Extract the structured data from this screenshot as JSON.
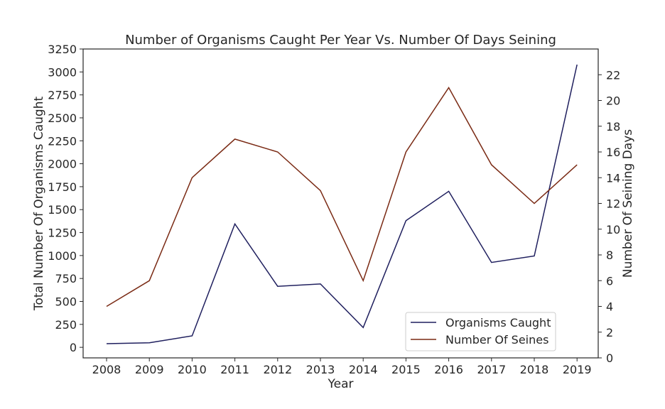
{
  "chart_data": {
    "type": "line",
    "title": "Number of Organisms Caught Per Year Vs. Number Of Days Seining",
    "xlabel": "Year",
    "ylabel_left": "Total Number Of Organisms Caught",
    "ylabel_right": "Number Of Seining Days",
    "categories": [
      "2008",
      "2009",
      "2010",
      "2011",
      "2012",
      "2013",
      "2014",
      "2015",
      "2016",
      "2017",
      "2018",
      "2019"
    ],
    "ylim_left": [
      -115,
      3250
    ],
    "yticks_left": [
      0,
      250,
      500,
      750,
      1000,
      1250,
      1500,
      1750,
      2000,
      2250,
      2500,
      2750,
      3000,
      3250
    ],
    "ylim_right": [
      0,
      24
    ],
    "yticks_right": [
      0,
      2,
      4,
      6,
      8,
      10,
      12,
      14,
      16,
      18,
      20,
      22
    ],
    "series": [
      {
        "name": "Organisms Caught",
        "axis": "left",
        "color": "#1f1f5e",
        "values": [
          40,
          50,
          125,
          1345,
          665,
          690,
          215,
          1380,
          1700,
          925,
          995,
          3080
        ]
      },
      {
        "name": "Number Of Seines",
        "axis": "right",
        "color": "#7a2a14",
        "values": [
          4,
          6,
          14,
          17,
          16,
          13,
          6,
          16,
          21,
          15,
          12,
          15
        ]
      }
    ],
    "legend_position": "lower-right",
    "grid": false
  }
}
